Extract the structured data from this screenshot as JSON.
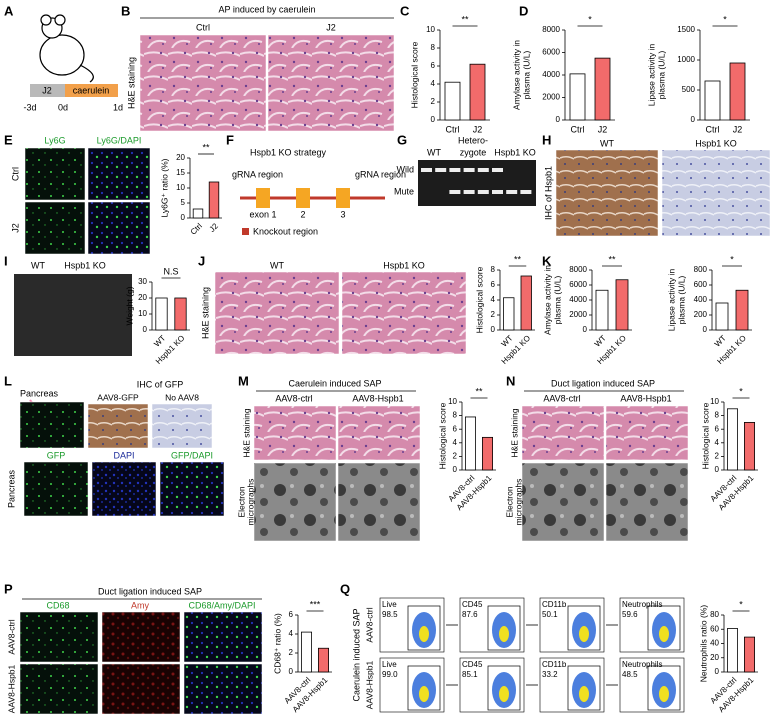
{
  "panels": {
    "A": {
      "label": "A",
      "steps": [
        "J2",
        "caerulein"
      ],
      "days": [
        "-3d",
        "0d",
        "1d"
      ]
    },
    "B": {
      "label": "B",
      "title": "AP induced by caerulein",
      "columns": [
        "Ctrl",
        "J2"
      ],
      "row_label": "H&E staining"
    },
    "C": {
      "label": "C",
      "chart": {
        "type": "bar",
        "ylabel": [
          "Histological score"
        ],
        "categories": [
          "Ctrl",
          "J2"
        ],
        "values": [
          4.2,
          6.2
        ],
        "ylim": [
          0,
          10
        ],
        "yticks": [
          0,
          2,
          4,
          6,
          8,
          10
        ],
        "significance": "**",
        "colors": [
          "#ffffff",
          "#f26b6b"
        ]
      }
    },
    "D": {
      "label": "D",
      "charts": [
        {
          "type": "bar",
          "ylabel": [
            "Amylase activity in",
            "plasma (U/L)"
          ],
          "categories": [
            "Ctrl",
            "J2"
          ],
          "values": [
            4100,
            5500
          ],
          "ylim": [
            0,
            8000
          ],
          "yticks": [
            0,
            2000,
            4000,
            6000,
            8000
          ],
          "significance": "*",
          "colors": [
            "#ffffff",
            "#f26b6b"
          ]
        },
        {
          "type": "bar",
          "ylabel": [
            "Lipase activity in",
            "plasma (U/L)"
          ],
          "categories": [
            "Ctrl",
            "J2"
          ],
          "values": [
            650,
            950
          ],
          "ylim": [
            0,
            1500
          ],
          "yticks": [
            0,
            500,
            1000,
            1500
          ],
          "significance": "*",
          "colors": [
            "#ffffff",
            "#f26b6b"
          ]
        }
      ]
    },
    "E": {
      "label": "E",
      "columns": [
        "Ly6G",
        "Ly6G/DAPI"
      ],
      "rows": [
        "Ctrl",
        "J2"
      ],
      "chart": {
        "type": "bar",
        "ylabel": [
          "Ly6G⁺ ratio (%)"
        ],
        "categories": [
          "Ctrl",
          "J2"
        ],
        "values": [
          3,
          12
        ],
        "ylim": [
          0,
          20
        ],
        "yticks": [
          0,
          5,
          10,
          15,
          20
        ],
        "significance": "**",
        "colors": [
          "#ffffff",
          "#f26b6b"
        ]
      }
    },
    "F": {
      "label": "F",
      "title": "Hspb1 KO strategy",
      "grna": [
        "gRNA region",
        "gRNA region"
      ],
      "exons": [
        "exon 1",
        "2",
        "3"
      ],
      "legend": "Knockout region"
    },
    "G": {
      "label": "G",
      "columns": [
        [
          "WT"
        ],
        [
          "Hetero-",
          "zygote"
        ],
        [
          "Hspb1 KO"
        ]
      ],
      "rows": [
        "Wild",
        "Mute"
      ]
    },
    "H": {
      "label": "H",
      "columns": [
        "WT",
        "Hspb1 KO"
      ],
      "row_label": "IHC of Hspb1"
    },
    "I": {
      "label": "I",
      "columns": [
        "WT",
        "Hspb1 KO"
      ],
      "chart": {
        "type": "bar",
        "ylabel": [
          "Weight (g)"
        ],
        "categories": [
          "WT",
          "Hspb1 KO"
        ],
        "values": [
          20,
          20
        ],
        "ylim": [
          0,
          30
        ],
        "yticks": [
          0,
          10,
          20,
          30
        ],
        "significance": "N.S",
        "colors": [
          "#ffffff",
          "#f26b6b"
        ]
      }
    },
    "J": {
      "label": "J",
      "columns": [
        "WT",
        "Hspb1 KO"
      ],
      "row_label": "H&E staining",
      "chart": {
        "type": "bar",
        "ylabel": [
          "Histological score"
        ],
        "categories": [
          "WT",
          "Hspb1 KO"
        ],
        "values": [
          4.3,
          7.2
        ],
        "ylim": [
          0,
          8
        ],
        "yticks": [
          0,
          2,
          4,
          6,
          8
        ],
        "significance": "**",
        "colors": [
          "#ffffff",
          "#f26b6b"
        ]
      }
    },
    "K": {
      "label": "K",
      "charts": [
        {
          "type": "bar",
          "ylabel": [
            "Amylase activity in",
            "plasma (U/L)"
          ],
          "categories": [
            "WT",
            "Hspb1 KO"
          ],
          "values": [
            5300,
            6700
          ],
          "ylim": [
            0,
            8000
          ],
          "yticks": [
            0,
            2000,
            4000,
            6000,
            8000
          ],
          "significance": "**",
          "colors": [
            "#ffffff",
            "#f26b6b"
          ]
        },
        {
          "type": "bar",
          "ylabel": [
            "Lipase activity in",
            "plasma (U/L)"
          ],
          "categories": [
            "WT",
            "Hspb1 KO"
          ],
          "values": [
            360,
            530
          ],
          "ylim": [
            0,
            800
          ],
          "yticks": [
            0,
            200,
            400,
            600,
            800
          ],
          "significance": "*",
          "colors": [
            "#ffffff",
            "#f26b6b"
          ]
        }
      ]
    },
    "L": {
      "label": "L",
      "title": "IHC of GFP",
      "inset_label": "Pancreas",
      "columns": [
        "AAV8-GFP",
        "No AAV8"
      ],
      "channels": [
        "GFP",
        "DAPI",
        "GFP/DAPI"
      ],
      "row_label": "Pancreas"
    },
    "M": {
      "label": "M",
      "title": "Caerulein induced SAP",
      "columns": [
        "AAV8-ctrl",
        "AAV8-Hspb1"
      ],
      "row_labels": [
        [
          "H&E staining"
        ],
        [
          "Electron",
          "micrographs"
        ]
      ],
      "chart": {
        "type": "bar",
        "ylabel": [
          "Histological score"
        ],
        "categories": [
          "AAV8-ctrl",
          "AAV8-Hspb1"
        ],
        "values": [
          7.8,
          4.8
        ],
        "ylim": [
          0,
          10
        ],
        "yticks": [
          0,
          2,
          4,
          6,
          8,
          10
        ],
        "significance": "**",
        "colors": [
          "#ffffff",
          "#f26b6b"
        ]
      }
    },
    "N": {
      "label": "N",
      "title": "Duct ligation induced SAP",
      "columns": [
        "AAV8-ctrl",
        "AAV8-Hspb1"
      ],
      "row_labels": [
        [
          "H&E staining"
        ],
        [
          "Electron",
          "micrographs"
        ]
      ],
      "chart": {
        "type": "bar",
        "ylabel": [
          "Histological score"
        ],
        "categories": [
          "AAV8-ctrl",
          "AAV8-Hspb1"
        ],
        "values": [
          9,
          7
        ],
        "ylim": [
          0,
          10
        ],
        "yticks": [
          0,
          2,
          4,
          6,
          8,
          10
        ],
        "significance": "*",
        "colors": [
          "#ffffff",
          "#f26b6b"
        ]
      }
    },
    "P": {
      "label": "P",
      "title": "Duct ligation induced SAP",
      "columns": [
        "CD68",
        "Amy",
        "CD68/Amy/DAPI"
      ],
      "rows": [
        "AAV8-ctrl",
        "AAV8-Hspb1"
      ],
      "chart": {
        "type": "bar",
        "ylabel": [
          "CD68⁺ ratio (%)"
        ],
        "categories": [
          "AAV8-ctrl",
          "AAV8-Hspb1"
        ],
        "values": [
          4.2,
          2.5
        ],
        "ylim": [
          0,
          6
        ],
        "yticks": [
          0,
          2,
          4,
          6
        ],
        "significance": "***",
        "colors": [
          "#ffffff",
          "#f26b6b"
        ]
      }
    },
    "Q": {
      "label": "Q",
      "side_label": "Caerulein induced SAP",
      "rows": [
        "AAV8-ctrl",
        "AAV8-Hspb1"
      ],
      "gates": [
        [
          {
            "name": "Live",
            "pct": "98.5"
          },
          {
            "name": "CD45",
            "pct": "87.6"
          },
          {
            "name": "CD11b",
            "pct": "50.1"
          },
          {
            "name": "Neutrophils",
            "pct": "59.6"
          }
        ],
        [
          {
            "name": "Live",
            "pct": "99.0"
          },
          {
            "name": "CD45",
            "pct": "85.1"
          },
          {
            "name": "CD11b",
            "pct": "33.2"
          },
          {
            "name": "Neutrophils",
            "pct": "48.5"
          }
        ]
      ],
      "chart": {
        "type": "bar",
        "ylabel": [
          "Neutrophils ratio (%)"
        ],
        "categories": [
          "AAV8-ctrl",
          "AAV8-Hspb1"
        ],
        "values": [
          61,
          49
        ],
        "ylim": [
          0,
          80
        ],
        "yticks": [
          0,
          20,
          40,
          60,
          80
        ],
        "significance": "*",
        "colors": [
          "#ffffff",
          "#f26b6b"
        ]
      }
    }
  }
}
